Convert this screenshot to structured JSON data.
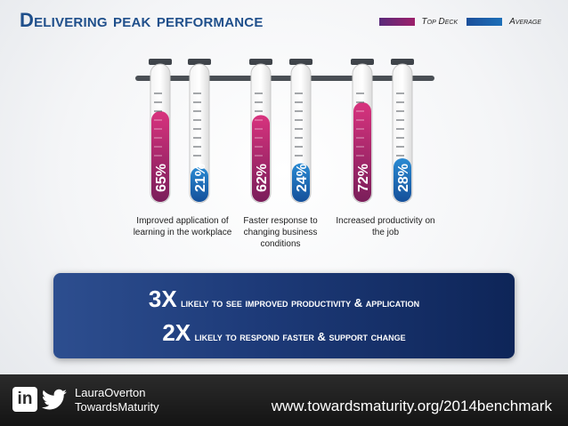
{
  "title": "Delivering peak performance",
  "legend": [
    {
      "label": "Top Deck",
      "color": "#9c1f6a"
    },
    {
      "label": "Average",
      "color": "#1d6fb8"
    }
  ],
  "chart_data": {
    "type": "bar",
    "categories": [
      "Improved application of learning in the workplace",
      "Faster response to changing business conditions",
      "Increased productivity on the job"
    ],
    "series": [
      {
        "name": "Top Deck",
        "values": [
          65,
          62,
          72
        ],
        "labels": [
          "65%",
          "62%",
          "72%"
        ]
      },
      {
        "name": "Average",
        "values": [
          21,
          24,
          28
        ],
        "labels": [
          "21%",
          "24%",
          "28%"
        ]
      }
    ],
    "ylim": [
      0,
      100
    ]
  },
  "captions": [
    "Improved application of learning in the workplace",
    "Faster response to changing business conditions",
    "Increased productivity on the job"
  ],
  "banner": {
    "line1_big": "3X",
    "line1_rest": "likely to see improved productivity & application",
    "line2_big": "2X",
    "line2_rest": "likely to respond faster & support change"
  },
  "footer": {
    "name1": "LauraOverton",
    "name2": "TowardsMaturity",
    "url": "www.towardsmaturity.org/2014benchmark",
    "icons": [
      "linkedin-icon",
      "twitter-icon"
    ]
  }
}
